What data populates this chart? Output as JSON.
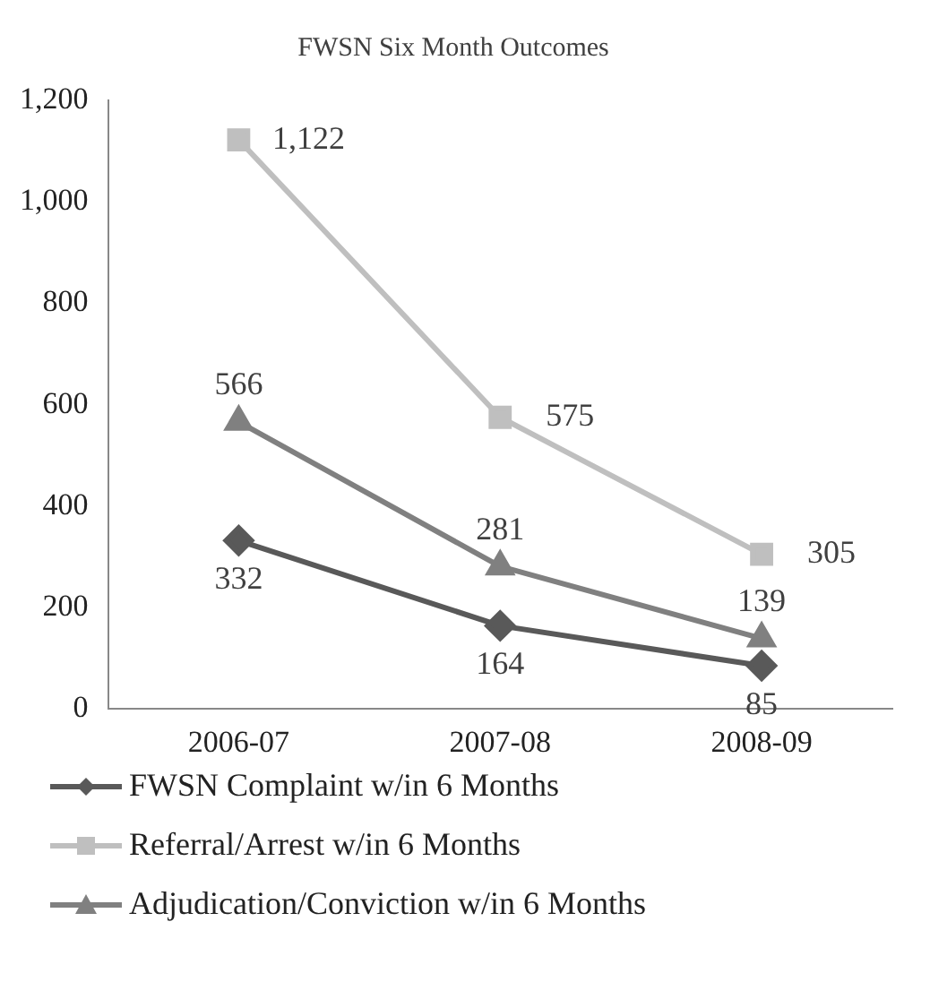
{
  "chart_data": {
    "type": "line",
    "title": "FWSN Six Month Outcomes",
    "categories": [
      "2006-07",
      "2007-08",
      "2008-09"
    ],
    "series": [
      {
        "name": "FWSN Complaint w/in 6 Months",
        "color": "#595959",
        "marker": "diamond",
        "values": [
          332,
          164,
          85
        ],
        "value_labels": [
          "332",
          "164",
          "85"
        ]
      },
      {
        "name": "Referral/Arrest w/in 6 Months",
        "color": "#bfbfbf",
        "marker": "square",
        "values": [
          1122,
          575,
          305
        ],
        "value_labels": [
          "1,122",
          "575",
          "305"
        ]
      },
      {
        "name": "Adjudication/Conviction w/in 6 Months",
        "color": "#808080",
        "marker": "triangle",
        "values": [
          566,
          281,
          139
        ],
        "value_labels": [
          "566",
          "281",
          "139"
        ]
      }
    ],
    "ylim": [
      0,
      1200
    ],
    "yticks": [
      0,
      {
        "value": 200,
        "label": "200"
      },
      {
        "value": 400,
        "label": "400"
      },
      {
        "value": 600,
        "label": "600"
      },
      {
        "value": 800,
        "label": "800"
      },
      {
        "value": 1000,
        "label": "1,000"
      },
      {
        "value": 1200,
        "label": "1,200"
      }
    ],
    "grid": false,
    "legend": "bottom"
  }
}
